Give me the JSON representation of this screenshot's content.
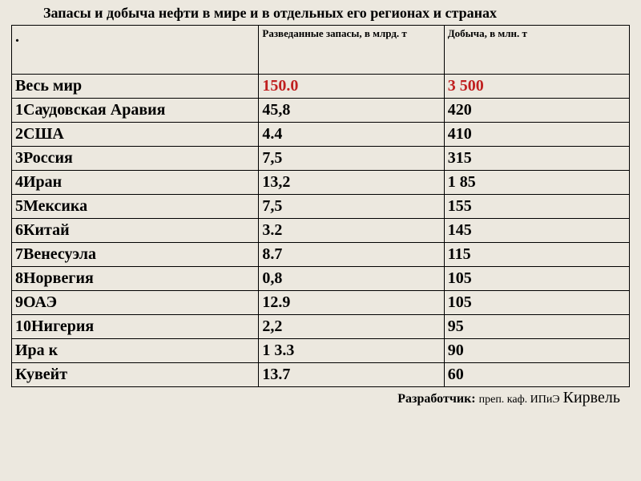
{
  "title": "Запасы и добыча нефти в мире и в отдельных его регионах и странах",
  "table": {
    "columns": [
      {
        "label": ".",
        "width_pct": 40
      },
      {
        "label": "Разведанные запасы, в млрд. т",
        "width_pct": 30
      },
      {
        "label": "Добыча, в млн. т",
        "width_pct": 30
      }
    ],
    "header_fontsize": 13,
    "cell_fontsize": 20,
    "cell_fontweight": "bold",
    "border_color": "#000000",
    "background_color": "#ece8df",
    "highlight_color": "#c02020",
    "rows": [
      {
        "cells": [
          "Весь мир",
          "150.0",
          "3 500"
        ],
        "highlight": true
      },
      {
        "cells": [
          "1Саудовская Аравия",
          "45,8",
          "420"
        ],
        "highlight": false
      },
      {
        "cells": [
          "2США",
          "4.4",
          "410"
        ],
        "highlight": false
      },
      {
        "cells": [
          "3Россия",
          "7,5",
          "315"
        ],
        "highlight": false
      },
      {
        "cells": [
          "4Иран",
          "13,2",
          "1 85"
        ],
        "highlight": false
      },
      {
        "cells": [
          "5Мексика",
          "7,5",
          "155"
        ],
        "highlight": false
      },
      {
        "cells": [
          "6Китай",
          "3.2",
          "145"
        ],
        "highlight": false
      },
      {
        "cells": [
          "7Венесуэла",
          "8.7",
          "115"
        ],
        "highlight": false
      },
      {
        "cells": [
          "8Норвегия",
          "0,8",
          "105"
        ],
        "highlight": false
      },
      {
        "cells": [
          "9ОАЭ",
          "12.9",
          "105"
        ],
        "highlight": false
      },
      {
        "cells": [
          "10Нигерия",
          "2,2",
          "95"
        ],
        "highlight": false
      },
      {
        "cells": [
          "Ира к",
          "1 3.3",
          "90"
        ],
        "highlight": false
      },
      {
        "cells": [
          "Кувейт",
          "13.7",
          "60"
        ],
        "highlight": false
      }
    ]
  },
  "footer": {
    "label": "Разработчик:",
    "dept": "преп. каф. ИПиЭ",
    "name": "Кирвель"
  },
  "page_background": "#ece8df",
  "font_family": "Times New Roman"
}
